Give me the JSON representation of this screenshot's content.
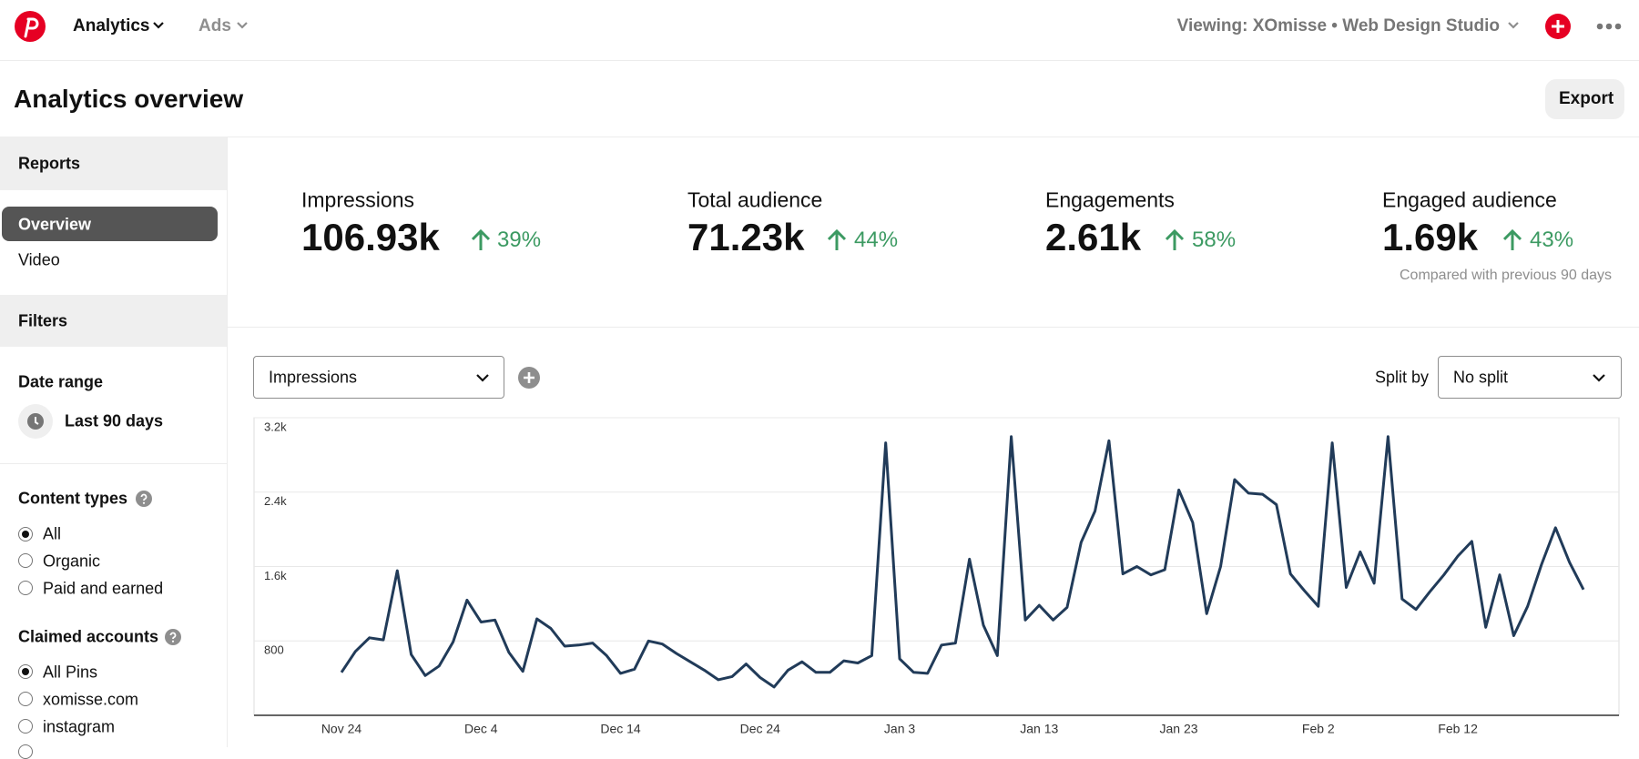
{
  "nav": {
    "analytics": "Analytics",
    "ads": "Ads",
    "viewing": "Viewing: XOmisse • Web Design Studio"
  },
  "header": {
    "title": "Analytics overview",
    "export": "Export"
  },
  "sidebar": {
    "reports": "Reports",
    "report_items": [
      "Overview",
      "Video"
    ],
    "filters": "Filters",
    "date_range": {
      "title": "Date range",
      "value": "Last 90 days"
    },
    "content_types": {
      "title": "Content types",
      "options": [
        "All",
        "Organic",
        "Paid and earned"
      ]
    },
    "claimed_accounts": {
      "title": "Claimed accounts",
      "options": [
        "All Pins",
        "xomisse.com",
        "instagram"
      ]
    }
  },
  "metrics": [
    {
      "label": "Impressions",
      "value": "106.93k",
      "change": "39%"
    },
    {
      "label": "Total audience",
      "value": "71.23k",
      "change": "44%"
    },
    {
      "label": "Engagements",
      "value": "2.61k",
      "change": "58%"
    },
    {
      "label": "Engaged audience",
      "value": "1.69k",
      "change": "43%"
    }
  ],
  "comparison_note": "Compared with previous 90 days",
  "controls": {
    "metric": "Impressions",
    "split_label": "Split by",
    "split": "No split"
  },
  "chart_data": {
    "type": "line",
    "color": "#213b59",
    "categories": [
      "Nov 24",
      null,
      null,
      null,
      null,
      null,
      null,
      null,
      null,
      null,
      "Dec 4",
      null,
      null,
      null,
      null,
      null,
      null,
      null,
      null,
      null,
      "Dec 14",
      null,
      null,
      null,
      null,
      null,
      null,
      null,
      null,
      null,
      "Dec 24",
      null,
      null,
      null,
      null,
      null,
      null,
      null,
      null,
      null,
      "Jan 3",
      null,
      null,
      null,
      null,
      null,
      null,
      null,
      null,
      null,
      "Jan 13",
      null,
      null,
      null,
      null,
      null,
      null,
      null,
      null,
      null,
      "Jan 23",
      null,
      null,
      null,
      null,
      null,
      null,
      null,
      null,
      null,
      "Feb 2",
      null,
      null,
      null,
      null,
      null,
      null,
      null,
      null,
      null,
      "Feb 12",
      null,
      null,
      null,
      null,
      null,
      null,
      null,
      null,
      null
    ],
    "values": [
      462,
      687,
      834,
      811,
      1555,
      654,
      428,
      530,
      789,
      1239,
      1003,
      1025,
      676,
      473,
      1037,
      935,
      744,
      755,
      777,
      642,
      451,
      496,
      800,
      766,
      665,
      575,
      485,
      383,
      417,
      552,
      406,
      304,
      485,
      575,
      462,
      462,
      586,
      563,
      642,
      2930,
      608,
      462,
      451,
      755,
      777,
      1679,
      969,
      642,
      2997,
      1025,
      1183,
      1025,
      1161,
      1859,
      2197,
      2952,
      1521,
      1600,
      1510,
      1566,
      2423,
      2073,
      1093,
      1600,
      2535,
      2389,
      2377,
      2265,
      1521,
      1341,
      1172,
      2930,
      1375,
      1758,
      1420,
      2997,
      1251,
      1138,
      1330,
      1510,
      1713,
      1870,
      946,
      1510,
      856,
      1172,
      1623,
      2017,
      1645,
      1352
    ],
    "ylim": [
      0,
      3200
    ],
    "yticks": [
      {
        "value": 3200,
        "label": "3.2k"
      },
      {
        "value": 2400,
        "label": "2.4k"
      },
      {
        "value": 1600,
        "label": "1.6k"
      },
      800
    ],
    "grid": true
  }
}
